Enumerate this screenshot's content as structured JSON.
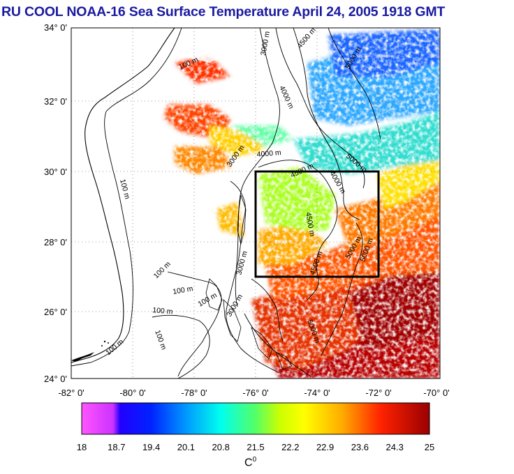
{
  "title": "RU COOL  NOAA-16 Sea Surface Temperature April 24, 2005 1918 GMT",
  "lat_ticks": [
    "24° 0'",
    "26° 0'",
    "28° 0'",
    "30° 0'",
    "32° 0'",
    "34° 0'"
  ],
  "lon_ticks": [
    "-82° 0'",
    "-80° 0'",
    "-78° 0'",
    "-76° 0'",
    "-74° 0'",
    "-72° 0'",
    "-70° 0'"
  ],
  "contour_labels": [
    "100 m",
    "100 m",
    "100 m",
    "100 m",
    "100 m",
    "100 m",
    "100 m",
    "100 m",
    "3000 m",
    "3000 m",
    "3000 m",
    "3000 m",
    "4000 m",
    "4000 m",
    "4000 m",
    "4500 m",
    "4500 m",
    "4500 m",
    "4500 m",
    "5000 m",
    "5000 m",
    "5000 m",
    "5000 m",
    "5000 m"
  ],
  "colorbar": {
    "ticks": [
      "18",
      "18.7",
      "19.4",
      "20.1",
      "20.8",
      "21.5",
      "22.2",
      "22.9",
      "23.6",
      "24.3",
      "25"
    ],
    "unit_base": "C",
    "unit_sup": "0",
    "min": 18,
    "max": 25,
    "colors": [
      "#ff55ff",
      "#8a1cff",
      "#0000ff",
      "#0066ff",
      "#00ccff",
      "#00ffbb",
      "#99ff00",
      "#ffff00",
      "#ff9900",
      "#ff2200",
      "#aa0000"
    ]
  },
  "box": {
    "lon_min": -76,
    "lon_max": -72,
    "lat_min": 27,
    "lat_max": 30
  }
}
